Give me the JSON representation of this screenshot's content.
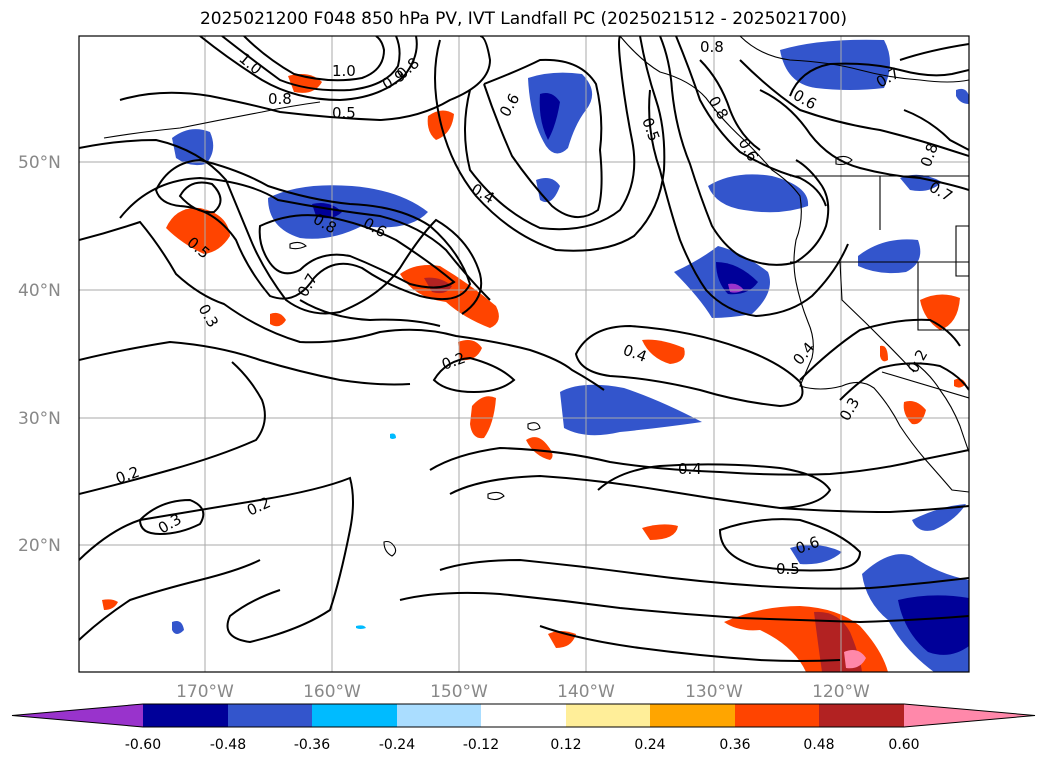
{
  "title": "2025021200 F048 850 hPa PV, IVT Landfall PC (2025021512 - 2025021700)",
  "axes": {
    "lat_labels": [
      "50°N",
      "40°N",
      "30°N",
      "20°N"
    ],
    "lon_labels": [
      "170°W",
      "160°W",
      "150°W",
      "140°W",
      "130°W",
      "120°W"
    ],
    "grid_color": "#aaaaaa"
  },
  "contour_labels": [
    "1.0",
    "1.0",
    "0.8",
    "0.9",
    "0.8",
    "0.5",
    "0.6",
    "0.4",
    "0.5",
    "0.8",
    "0.8",
    "0.6",
    "0.7",
    "0.6",
    "0.8",
    "0.7",
    "0.5",
    "0.8",
    "0.6",
    "0.7",
    "0.3",
    "0.4",
    "0.2",
    "0.4",
    "0.3",
    "0.2",
    "0.4",
    "0.2",
    "0.3",
    "0.2",
    "0.6",
    "0.5"
  ],
  "colorbar": {
    "levels": [
      "-0.60",
      "-0.48",
      "-0.36",
      "-0.24",
      "-0.12",
      "0.12",
      "0.24",
      "0.36",
      "0.48",
      "0.60"
    ],
    "colors": [
      "#9933cc",
      "#000099",
      "#3355cc",
      "#00bbff",
      "#aaddff",
      "#ffffff",
      "#ffee99",
      "#ffa500",
      "#ff4400",
      "#b22222",
      "#ff88aa"
    ]
  }
}
